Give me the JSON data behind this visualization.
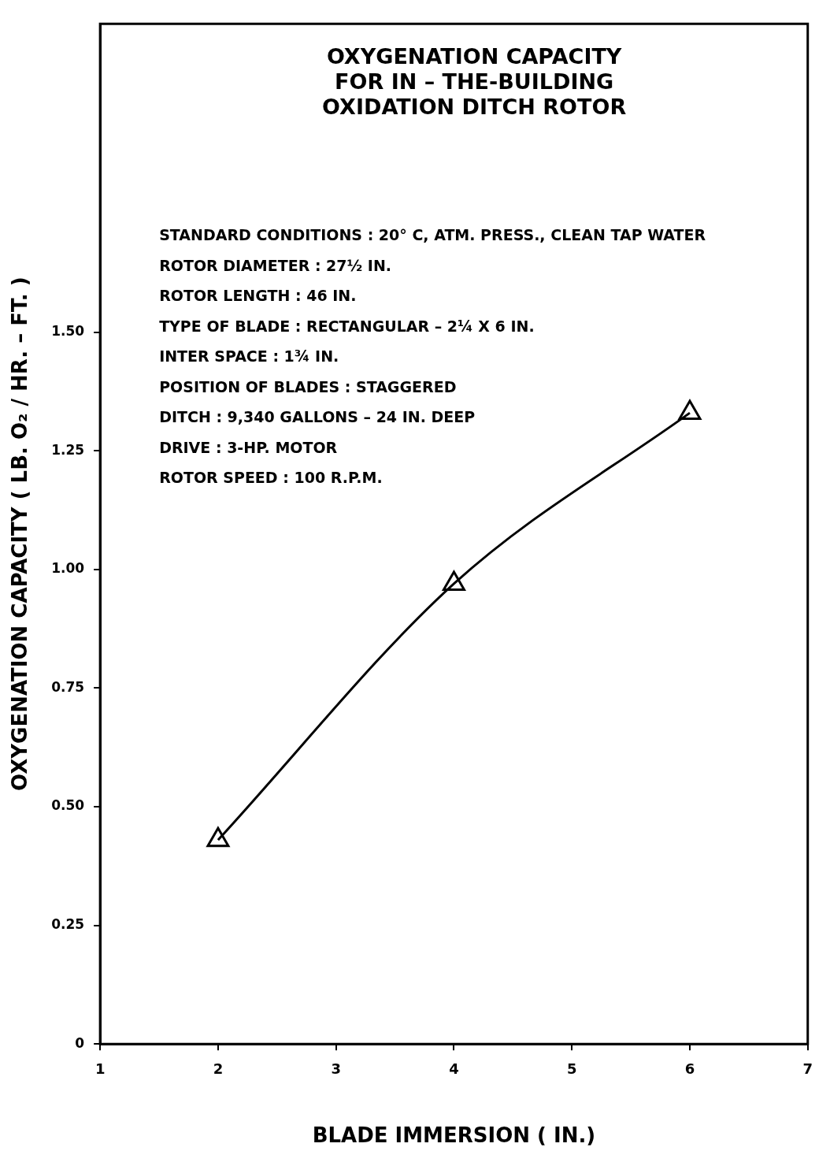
{
  "chart_data": {
    "type": "line",
    "title": "OXYGENATION CAPACITY FOR IN – THE-BUILDING OXIDATION DITCH ROTOR",
    "xlabel": "BLADE IMMERSION ( IN.)",
    "ylabel": "OXYGENATION CAPACITY ( LB. O₂ / HR. – FT. )",
    "annotations": [
      "STANDARD CONDITIONS : 20° C, ATM. PRESS., CLEAN TAP WATER",
      "ROTOR DIAMETER : 27½ IN.",
      "ROTOR LENGTH : 46 IN.",
      "TYPE OF BLADE : RECTANGULAR – 2¼ X 6 IN.",
      "INTER SPACE : 1¾ IN.",
      "POSITION OF BLADES : STAGGERED",
      "DITCH : 9,340 GALLONS – 24 IN. DEEP",
      "DRIVE : 3-HP. MOTOR",
      "ROTOR SPEED : 100 R.P.M."
    ],
    "x": [
      2,
      4,
      6
    ],
    "series": [
      {
        "color": "#000000",
        "values": [
          0.43,
          0.97,
          1.33
        ]
      }
    ],
    "xlim": [
      1,
      7
    ],
    "xticks": [
      1,
      2,
      3,
      4,
      5,
      6,
      7
    ],
    "ylim": [
      0,
      2.15
    ],
    "yticks": [
      0,
      {
        "value": 0.25,
        "label": "0.25"
      },
      {
        "value": 0.5,
        "label": "0.50"
      },
      {
        "value": 0.75,
        "label": "0.75"
      },
      {
        "value": 1,
        "label": "1.00"
      },
      {
        "value": 1.25,
        "label": "1.25"
      },
      {
        "value": 1.5,
        "label": "1.50"
      }
    ],
    "grid": false,
    "legend": false,
    "marker": "triangle",
    "line_style": "solid"
  }
}
